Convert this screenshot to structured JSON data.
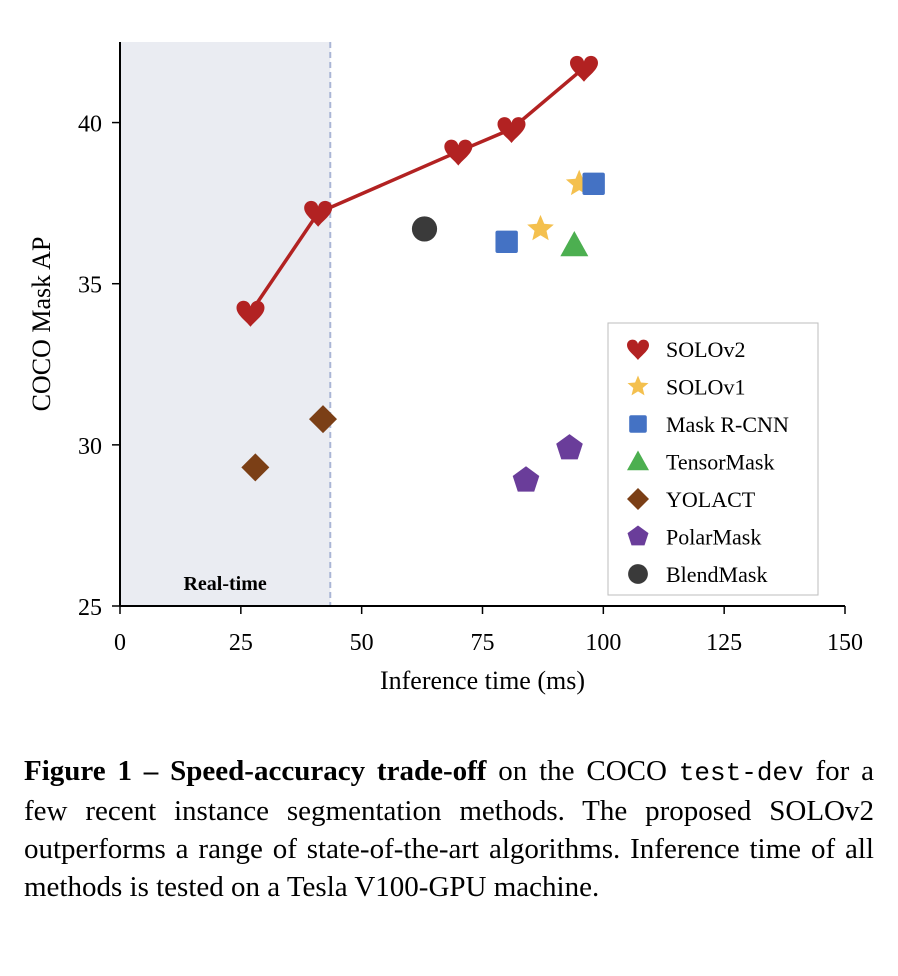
{
  "chart_data": {
    "type": "scatter",
    "xlabel": "Inference time (ms)",
    "ylabel": "COCO Mask AP",
    "xlim": [
      0,
      150
    ],
    "ylim": [
      25,
      42.5
    ],
    "xticks": [
      0,
      25,
      50,
      75,
      100,
      125,
      150
    ],
    "yticks": [
      25,
      30,
      35,
      40
    ],
    "grid": false,
    "legend_position": "right",
    "shaded_region": {
      "x": [
        0,
        43.5
      ],
      "label": "Real-time",
      "color": "#eaecf2"
    },
    "threshold_line_x": 43.5,
    "series": [
      {
        "name": "SOLOv2",
        "marker": "heart",
        "color": "#b22222",
        "connected": true,
        "x": [
          27,
          41,
          70,
          81,
          96
        ],
        "y": [
          34.1,
          37.2,
          39.1,
          39.8,
          41.7
        ]
      },
      {
        "name": "SOLOv1",
        "marker": "star",
        "color": "#f4c04e",
        "connected": false,
        "x": [
          87,
          95
        ],
        "y": [
          36.7,
          38.1
        ]
      },
      {
        "name": "Mask R-CNN",
        "marker": "square",
        "color": "#4472c4",
        "connected": false,
        "x": [
          80,
          98
        ],
        "y": [
          36.3,
          38.1
        ]
      },
      {
        "name": "TensorMask",
        "marker": "triangle",
        "color": "#4caf50",
        "connected": false,
        "x": [
          94
        ],
        "y": [
          36.2
        ]
      },
      {
        "name": "YOLACT",
        "marker": "diamond",
        "color": "#7b3f16",
        "connected": false,
        "x": [
          28,
          42
        ],
        "y": [
          29.3,
          30.8
        ]
      },
      {
        "name": "PolarMask",
        "marker": "pentagon",
        "color": "#6a3d9a",
        "connected": false,
        "x": [
          84,
          93
        ],
        "y": [
          28.9,
          29.9
        ]
      },
      {
        "name": "BlendMask",
        "marker": "circle",
        "color": "#3a3a3a",
        "connected": false,
        "x": [
          63
        ],
        "y": [
          36.7
        ]
      }
    ]
  },
  "caption": {
    "figure_number": "Figure 1 –",
    "bold_title": "Speed-accuracy trade-off",
    "text_before_code": " on the COCO ",
    "code": "test-dev",
    "text_after_code": " for a few recent instance segmentation methods. The proposed SOLOv2 outperforms a range of state-of-the-art algorithms. Inference time of all methods is tested on a Tesla V100-GPU machine."
  }
}
